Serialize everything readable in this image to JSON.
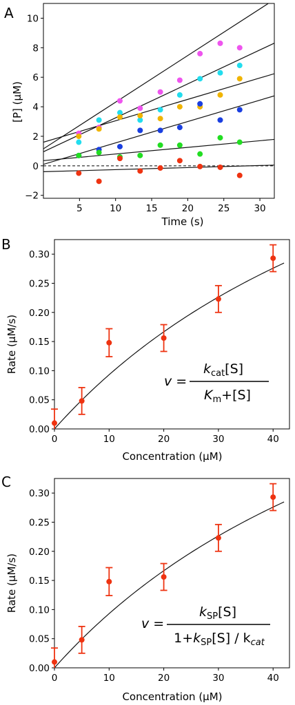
{
  "chart_data": [
    {
      "panel": "A",
      "type": "scatter",
      "xlabel": "Time (s)",
      "ylabel": "[P] (µM)",
      "xlim": [
        0,
        32
      ],
      "ylim": [
        -2.2,
        11
      ],
      "xticks": [
        5,
        10,
        15,
        20,
        25,
        30
      ],
      "yticks": [
        -2,
        0,
        2,
        4,
        6,
        8,
        10
      ],
      "grid": false,
      "x": [
        4.9,
        7.7,
        10.6,
        13.4,
        16.2,
        18.9,
        21.7,
        24.5,
        27.2
      ],
      "series": [
        {
          "color": "#ee55ee",
          "values": [
            2.2,
            2.6,
            4.4,
            3.9,
            5.0,
            5.8,
            7.6,
            8.3,
            8.0
          ],
          "fit": {
            "intercept": 1.15,
            "slope": 0.316
          }
        },
        {
          "color": "#22ddee",
          "values": [
            1.6,
            3.1,
            3.6,
            3.1,
            3.8,
            4.8,
            5.9,
            6.3,
            6.8
          ],
          "fit": {
            "intercept": 0.95,
            "slope": 0.23
          }
        },
        {
          "color": "#f0b400",
          "values": [
            2.0,
            2.5,
            3.3,
            3.4,
            3.2,
            4.0,
            4.0,
            4.8,
            5.9
          ],
          "fit": {
            "intercept": 1.6,
            "slope": 0.145
          }
        },
        {
          "color": "#1a3fe0",
          "values": [
            0.7,
            1.1,
            1.3,
            2.4,
            2.4,
            2.6,
            4.2,
            3.1,
            3.8
          ],
          "fit": {
            "intercept": 0.1,
            "slope": 0.145
          }
        },
        {
          "color": "#22dd22",
          "values": [
            0.7,
            0.9,
            0.6,
            0.7,
            1.4,
            1.4,
            0.8,
            1.9,
            1.6
          ],
          "fit": {
            "intercept": 0.35,
            "slope": 0.045
          }
        },
        {
          "color": "#ee3311",
          "values": [
            -0.5,
            -1.05,
            0.5,
            -0.35,
            -0.15,
            0.35,
            -0.05,
            -0.1,
            -0.65
          ],
          "fit": {
            "intercept": -0.4,
            "slope": 0.014
          }
        }
      ],
      "reference_line": {
        "y": 0,
        "style": "dashed"
      }
    },
    {
      "panel": "B",
      "type": "scatter",
      "xlabel": "Concentration (µM)",
      "ylabel": "Rate (µM/s)",
      "xlim": [
        0,
        43
      ],
      "ylim": [
        0,
        0.325
      ],
      "xticks": [
        0,
        10,
        20,
        30,
        40
      ],
      "yticks": [
        0.0,
        0.05,
        0.1,
        0.15,
        0.2,
        0.25,
        0.3
      ],
      "grid": false,
      "x": [
        0,
        5,
        10,
        20,
        30,
        40
      ],
      "values": [
        0.01,
        0.048,
        0.148,
        0.156,
        0.223,
        0.293
      ],
      "errors": [
        0.024,
        0.023,
        0.024,
        0.023,
        0.023,
        0.023
      ],
      "point_color": "#ee3311",
      "fit": {
        "model": "michaelis-menten",
        "vmax": 0.8,
        "km": 76,
        "x_max": 42
      },
      "equation": {
        "lhs": "v =",
        "numerator_main": "k",
        "numerator_sub": "cat",
        "numerator_rest": "[S]",
        "denominator_main": "K",
        "denominator_sub": "m",
        "denominator_rest": "+[S]"
      }
    },
    {
      "panel": "C",
      "type": "scatter",
      "xlabel": "Concentration (µM)",
      "ylabel": "Rate (µM/s)",
      "xlim": [
        0,
        43
      ],
      "ylim": [
        0,
        0.325
      ],
      "xticks": [
        0,
        10,
        20,
        30,
        40
      ],
      "yticks": [
        0.0,
        0.05,
        0.1,
        0.15,
        0.2,
        0.25,
        0.3
      ],
      "grid": false,
      "x": [
        0,
        5,
        10,
        20,
        30,
        40
      ],
      "values": [
        0.01,
        0.048,
        0.148,
        0.156,
        0.223,
        0.293
      ],
      "errors": [
        0.024,
        0.023,
        0.024,
        0.023,
        0.023,
        0.023
      ],
      "point_color": "#ee3311",
      "fit": {
        "model": "michaelis-menten",
        "vmax": 0.8,
        "km": 76,
        "x_max": 42
      },
      "equation": {
        "lhs": "v =",
        "numerator_main": "k",
        "numerator_sub": "SP",
        "numerator_rest": "[S]",
        "denominator_prefix": "1+",
        "denominator_main": "k",
        "denominator_sub": "SP",
        "denominator_rest": "[S] / k",
        "denominator_sub2": "cat"
      }
    }
  ],
  "tick_format": {
    "A_x": "int",
    "A_y": "int",
    "B_y": "2dp",
    "C_y": "2dp",
    "B_x": "int",
    "C_x": "int"
  }
}
